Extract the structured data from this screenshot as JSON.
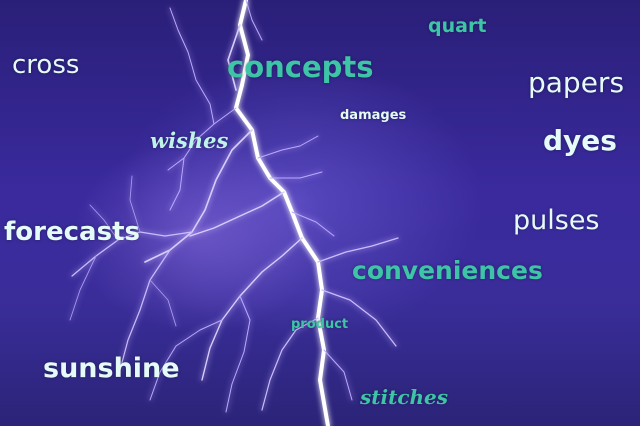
{
  "image": {
    "description_free_words": [
      {
        "id": "quart",
        "text": "quart"
      },
      {
        "id": "cross",
        "text": "cross"
      },
      {
        "id": "concepts",
        "text": "concepts"
      },
      {
        "id": "papers",
        "text": "papers"
      },
      {
        "id": "damages",
        "text": "damages"
      },
      {
        "id": "wishes",
        "text": "wishes"
      },
      {
        "id": "dyes",
        "text": "dyes"
      },
      {
        "id": "forecasts",
        "text": "forecasts"
      },
      {
        "id": "pulses",
        "text": "pulses"
      },
      {
        "id": "conveniences",
        "text": "conveniences"
      },
      {
        "id": "product",
        "text": "product"
      },
      {
        "id": "sunshine",
        "text": "sunshine"
      },
      {
        "id": "stitches",
        "text": "stitches"
      }
    ]
  },
  "colors": {
    "sky_dark": "#2a1f78",
    "sky_mid": "#3a2a9e",
    "bolt_core": "#ffffff",
    "bolt_glow": "#b9a8ff",
    "text_light": "#e4fbf8",
    "text_teal": "#3ec4a7"
  }
}
